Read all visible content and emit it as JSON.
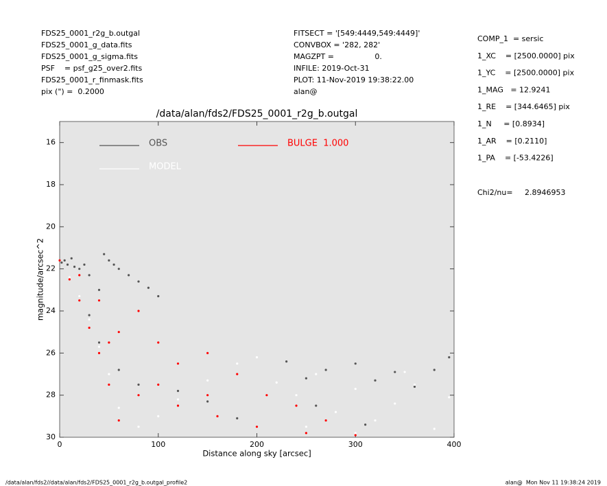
{
  "header": {
    "left": [
      "FDS25_0001_r2g_b.outgal",
      "FDS25_0001_g_data.fits",
      "FDS25_0001_g_sigma.fits",
      "PSF    = psf_g25_over2.fits",
      "FDS25_0001_r_finmask.fits",
      "pix (\") =  0.2000"
    ],
    "middle": [
      "FITSECT = '[549:4449,549:4449]'",
      "CONVBOX = '282, 282'",
      "MAGZPT =                 0.",
      "INFILE: 2019-Oct-31",
      "PLOT: 11-Nov-2019 19:38:22.00",
      "alan@"
    ],
    "right": [
      "COMP_1  = sersic",
      "1_XC    = [2500.0000] pix",
      "1_YC    = [2500.0000] pix",
      "1_MAG   = 12.9241",
      "1_RE    = [344.6465] pix",
      "1_N     = [0.8934]",
      "1_AR    = [0.2110]",
      "1_PA    = [-53.4226]"
    ],
    "chi2_label": "Chi2/nu=",
    "chi2_value": "2.8946953"
  },
  "footer": {
    "left": "/data/alan/fds2//data/alan/fds2/FDS25_0001_r2g_b.outgal_profile2",
    "right": "alan@  Mon Nov 11 19:38:24 2019"
  },
  "chart_data": {
    "type": "scatter",
    "title": "/data/alan/fds2/FDS25_0001_r2g_b.outgal",
    "x_label": "Distance along sky [arcsec]",
    "y_label": "magnitude/arcsec^2",
    "xlim": [
      0,
      400
    ],
    "xticks": [
      0,
      100,
      200,
      300,
      400
    ],
    "ylim": [
      30,
      15
    ],
    "yticks": [
      16,
      18,
      20,
      22,
      24,
      26,
      28,
      30
    ],
    "background": "#e5e5e5",
    "series": [
      {
        "name": "OBS",
        "color": "#555555",
        "x": [
          2,
          5,
          8,
          12,
          15,
          20,
          25,
          30,
          40,
          45,
          50,
          55,
          60,
          70,
          80,
          90,
          100,
          30,
          40,
          60,
          80,
          120,
          150,
          180,
          230,
          250,
          270,
          300,
          320,
          340,
          360,
          380,
          395,
          260,
          310
        ],
        "values": [
          21.7,
          21.6,
          21.8,
          21.5,
          21.9,
          22.0,
          21.8,
          22.3,
          23.0,
          21.3,
          21.6,
          21.8,
          22.0,
          22.3,
          22.6,
          22.9,
          23.3,
          24.2,
          25.5,
          26.8,
          27.5,
          27.8,
          28.3,
          29.1,
          26.4,
          27.2,
          26.8,
          26.5,
          27.3,
          26.9,
          27.6,
          26.8,
          26.2,
          28.5,
          29.4
        ]
      },
      {
        "name": "MODEL",
        "color": "#ffffff",
        "x": [
          10,
          20,
          30,
          40,
          50,
          60,
          80,
          100,
          120,
          150,
          180,
          200,
          220,
          240,
          260,
          280,
          300,
          320,
          340,
          360,
          380,
          395,
          250,
          300,
          350
        ],
        "values": [
          22.4,
          23.3,
          24.4,
          25.7,
          27.0,
          28.6,
          29.5,
          29.0,
          28.2,
          27.3,
          26.5,
          26.2,
          27.4,
          28.0,
          27.0,
          28.8,
          27.7,
          29.2,
          28.4,
          27.5,
          29.6,
          28.1,
          29.5,
          29.8,
          26.9
        ]
      },
      {
        "name": "BULGE  1.000",
        "color": "#ff0000",
        "x": [
          0,
          10,
          20,
          30,
          40,
          50,
          60,
          20,
          40,
          60,
          80,
          100,
          120,
          150,
          180,
          210,
          240,
          270,
          300,
          80,
          120,
          160,
          200,
          250,
          50,
          100,
          150
        ],
        "values": [
          21.6,
          22.5,
          23.5,
          24.8,
          26.0,
          27.5,
          29.2,
          22.3,
          23.5,
          25.0,
          24.0,
          25.5,
          26.5,
          26.0,
          27.0,
          28.0,
          28.5,
          29.2,
          29.9,
          28.0,
          28.5,
          29.0,
          29.5,
          29.8,
          25.5,
          27.5,
          28.0
        ]
      }
    ]
  }
}
